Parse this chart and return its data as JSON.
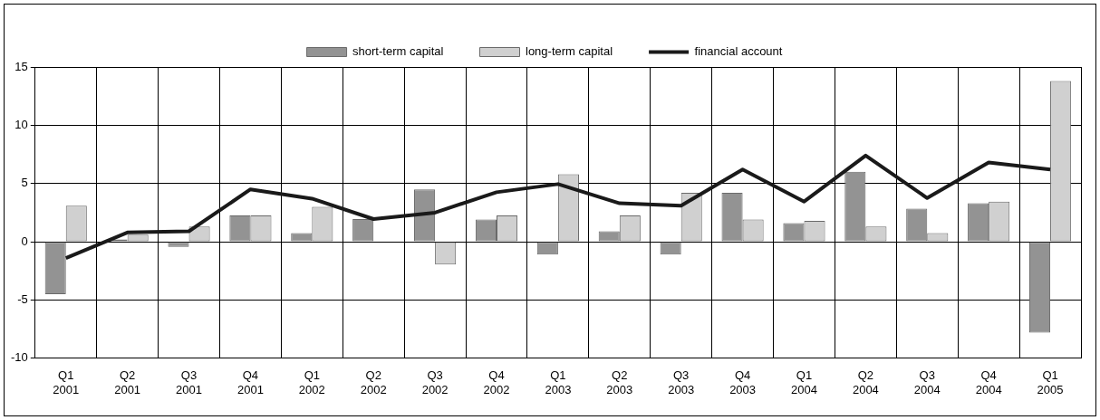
{
  "chart_data": {
    "type": "bar",
    "categories": [
      "Q1\n2001",
      "Q2\n2001",
      "Q3\n2001",
      "Q4\n2001",
      "Q1\n2002",
      "Q2\n2002",
      "Q3\n2002",
      "Q4\n2002",
      "Q1\n2003",
      "Q2\n2003",
      "Q3\n2003",
      "Q4\n2003",
      "Q1\n2004",
      "Q2\n2004",
      "Q3\n2004",
      "Q4\n2004",
      "Q1\n2005"
    ],
    "series": [
      {
        "name": "short-term capital",
        "color": "#939393",
        "values": [
          -4.5,
          0.2,
          -0.45,
          2.25,
          0.75,
          1.95,
          4.5,
          1.9,
          -1.1,
          0.9,
          -1.1,
          4.2,
          1.6,
          6.0,
          2.85,
          3.3,
          -7.8
        ]
      },
      {
        "name": "long-term capital",
        "color": "#d0d0d0",
        "values": [
          3.1,
          0.6,
          1.3,
          2.25,
          3.0,
          0,
          -1.95,
          2.25,
          5.8,
          2.25,
          4.2,
          1.9,
          1.8,
          1.3,
          0.75,
          3.45,
          13.8
        ]
      },
      {
        "name": "financial account",
        "type": "line",
        "color": "#1a1a1a",
        "values": [
          -1.4,
          0.8,
          0.9,
          4.5,
          3.7,
          1.95,
          2.5,
          4.25,
          4.95,
          3.3,
          3.1,
          6.2,
          3.45,
          7.4,
          3.75,
          6.8,
          6.2
        ]
      }
    ],
    "ylim": [
      -10,
      15
    ],
    "yticks": [
      -10,
      -5,
      0,
      5,
      10,
      15
    ],
    "grid": true,
    "legend": "top",
    "marker": "none",
    "line_style": "solid"
  }
}
